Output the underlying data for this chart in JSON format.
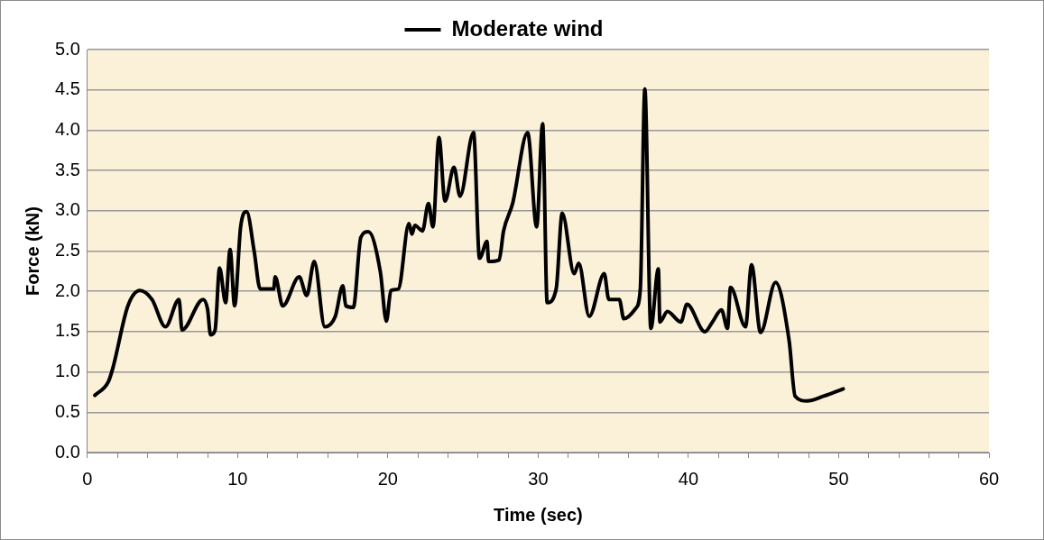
{
  "chart_data": {
    "type": "line",
    "xlabel": "Time (sec)",
    "ylabel": "Force (kN)",
    "legend": "top",
    "xlim": [
      0,
      60
    ],
    "ylim": [
      0,
      5
    ],
    "xticks": [
      0,
      {
        "value": 2,
        "label": null
      },
      {
        "value": 4,
        "label": null
      },
      {
        "value": 6,
        "label": null
      },
      {
        "value": 8,
        "label": null
      },
      10,
      {
        "value": 12,
        "label": null
      },
      {
        "value": 14,
        "label": null
      },
      {
        "value": 16,
        "label": null
      },
      {
        "value": 18,
        "label": null
      },
      20,
      {
        "value": 22,
        "label": null
      },
      {
        "value": 24,
        "label": null
      },
      {
        "value": 26,
        "label": null
      },
      {
        "value": 28,
        "label": null
      },
      30,
      {
        "value": 32,
        "label": null
      },
      {
        "value": 34,
        "label": null
      },
      {
        "value": 36,
        "label": null
      },
      {
        "value": 38,
        "label": null
      },
      40,
      {
        "value": 42,
        "label": null
      },
      {
        "value": 44,
        "label": null
      },
      {
        "value": 46,
        "label": null
      },
      {
        "value": 48,
        "label": null
      },
      50,
      {
        "value": 52,
        "label": null
      },
      {
        "value": 54,
        "label": null
      },
      {
        "value": 56,
        "label": null
      },
      {
        "value": 58,
        "label": null
      },
      60
    ],
    "yticks": [
      {
        "value": 0,
        "label": "0.0"
      },
      {
        "value": 0.5,
        "label": "0.5"
      },
      {
        "value": 1,
        "label": "1.0"
      },
      {
        "value": 1.5,
        "label": "1.5"
      },
      {
        "value": 2,
        "label": "2.0"
      },
      {
        "value": 2.5,
        "label": "2.5"
      },
      {
        "value": 3,
        "label": "3.0"
      },
      {
        "value": 3.5,
        "label": "3.5"
      },
      {
        "value": 4,
        "label": "4.0"
      },
      {
        "value": 4.5,
        "label": "4.5"
      },
      {
        "value": 5,
        "label": "5.0"
      }
    ],
    "grid": "y",
    "marker": "none",
    "line_style": "solid",
    "series": [
      {
        "name": "Moderate wind",
        "color": "#000000",
        "x": [
          0.5,
          1.4,
          1.7,
          2.7,
          3.5,
          4.3,
          5.2,
          6.1,
          6.3,
          7.7,
          8.0,
          8.2,
          8.5,
          8.8,
          9.2,
          9.5,
          9.8,
          10.2,
          10.6,
          11.1,
          11.5,
          12.4,
          12.5,
          13.0,
          14.1,
          14.6,
          15.1,
          15.8,
          16.5,
          17.0,
          17.2,
          17.7,
          18.2,
          18.7,
          19.5,
          19.9,
          20.2,
          20.7,
          21.4,
          21.6,
          21.8,
          22.3,
          22.7,
          23.0,
          23.4,
          23.8,
          24.4,
          24.8,
          25.7,
          26.1,
          26.6,
          26.7,
          27.4,
          27.7,
          28.3,
          29.3,
          29.9,
          30.3,
          30.6,
          31.2,
          31.6,
          32.4,
          32.7,
          33.4,
          34.4,
          34.7,
          35.4,
          35.7,
          36.5,
          36.8,
          37.1,
          37.5,
          38.0,
          38.1,
          38.6,
          39.5,
          39.9,
          41.1,
          41.6,
          42.2,
          42.6,
          42.8,
          43.8,
          44.2,
          44.8,
          45.8,
          46.7,
          47.1,
          47.9,
          49.0,
          50.3
        ],
        "values": [
          0.71,
          0.88,
          1.05,
          1.82,
          2.01,
          1.9,
          1.56,
          1.9,
          1.52,
          1.9,
          1.78,
          1.46,
          1.52,
          2.29,
          1.86,
          2.52,
          1.82,
          2.8,
          2.99,
          2.5,
          2.03,
          2.03,
          2.18,
          1.82,
          2.18,
          1.95,
          2.37,
          1.56,
          1.69,
          2.07,
          1.82,
          1.8,
          2.67,
          2.74,
          2.24,
          1.63,
          2.01,
          2.03,
          2.84,
          2.71,
          2.82,
          2.75,
          3.09,
          2.8,
          3.91,
          3.12,
          3.54,
          3.18,
          3.97,
          2.41,
          2.62,
          2.37,
          2.39,
          2.75,
          3.09,
          3.97,
          2.8,
          4.08,
          1.86,
          2.03,
          2.97,
          2.22,
          2.35,
          1.69,
          2.22,
          1.9,
          1.9,
          1.66,
          1.79,
          2.03,
          4.51,
          1.54,
          2.28,
          1.62,
          1.75,
          1.62,
          1.84,
          1.5,
          1.62,
          1.77,
          1.54,
          2.05,
          1.56,
          2.33,
          1.49,
          2.11,
          1.39,
          0.7,
          0.64,
          0.7,
          0.79
        ]
      }
    ]
  }
}
